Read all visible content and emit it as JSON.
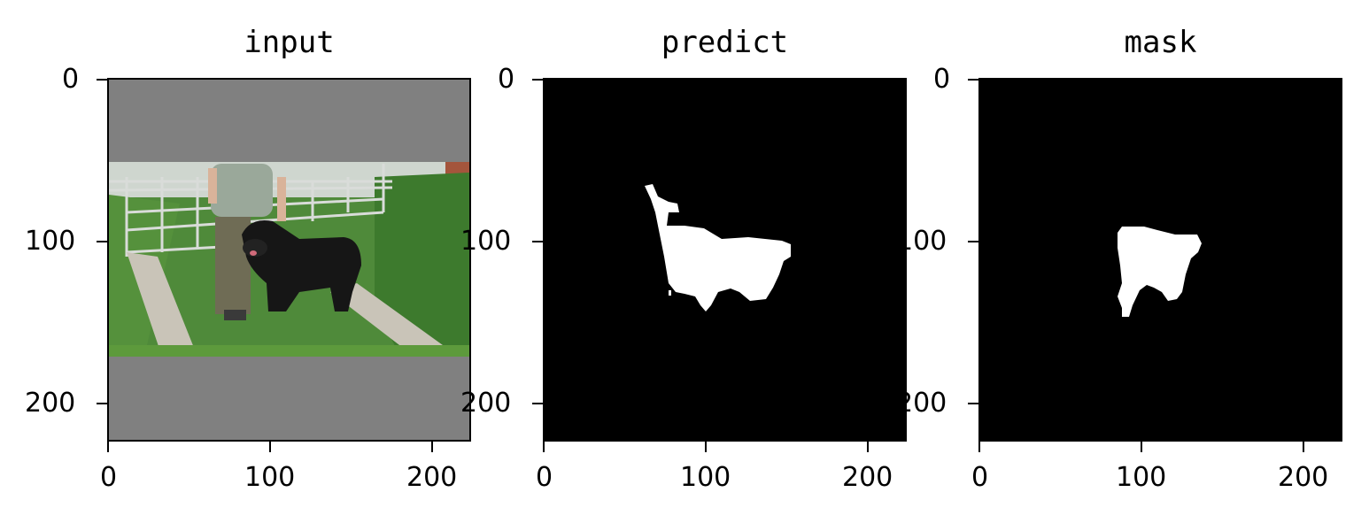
{
  "figure": {
    "panels": [
      {
        "id": "input",
        "title": "input",
        "image_content": "photo of a person walking a large black long-haired dog on a grassy gravel path beside a metal gate; grey letterbox padding above and below",
        "letterbox_color": "#808080",
        "x_ticks": [
          "0",
          "100",
          "200"
        ],
        "y_ticks": [
          "0",
          "100",
          "200"
        ],
        "xlim": [
          0,
          224
        ],
        "ylim": [
          224,
          0
        ]
      },
      {
        "id": "predict",
        "title": "predict",
        "image_content": "binary segmentation mask: white dog silhouette on black",
        "background_color": "#000000",
        "foreground_color": "#ffffff",
        "x_ticks": [
          "0",
          "100",
          "200"
        ],
        "y_ticks": [
          "0",
          "100",
          "200"
        ],
        "xlim": [
          0,
          224
        ],
        "ylim": [
          224,
          0
        ]
      },
      {
        "id": "mask",
        "title": "mask",
        "image_content": "ground-truth binary mask: white dog silhouette on black",
        "background_color": "#000000",
        "foreground_color": "#ffffff",
        "x_ticks": [
          "0",
          "100",
          "200"
        ],
        "y_ticks": [
          "0",
          "100",
          "200"
        ],
        "xlim": [
          0,
          224
        ],
        "ylim": [
          224,
          0
        ]
      }
    ]
  }
}
